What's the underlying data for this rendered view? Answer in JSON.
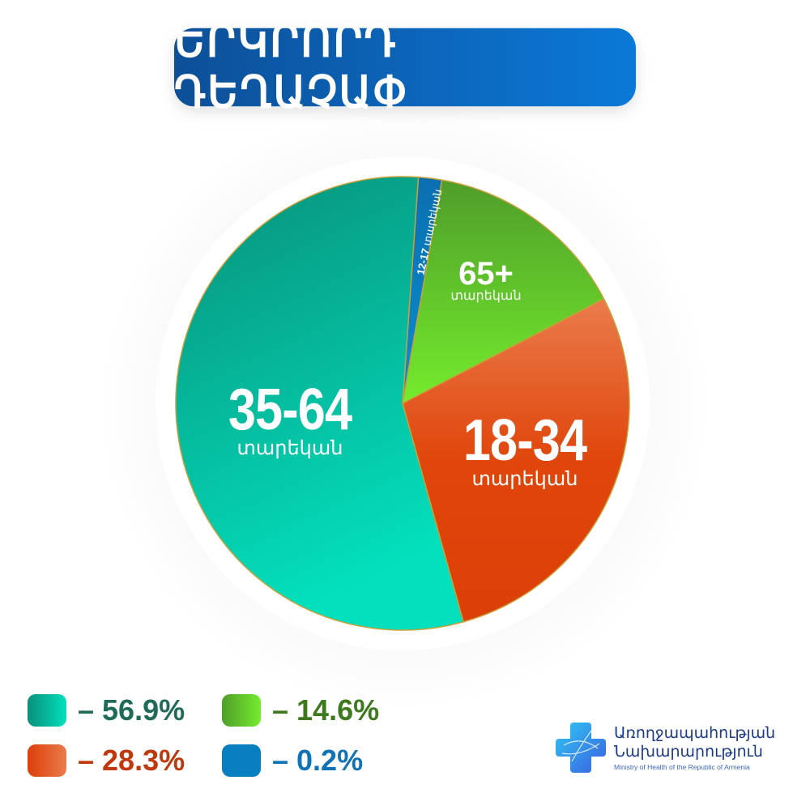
{
  "title": "ԵՐԿՐՈՐԴ ԴԵՂԱՉԱՓ",
  "chart_data": {
    "type": "pie",
    "title": "ԵՐԿՐՈՐԴ ԴԵՂԱՉԱՓ",
    "slices": [
      {
        "label": "12-17",
        "sublabel": "տարեկան",
        "value": 0.2,
        "legend": "– 0.2%",
        "color": "#0a7fc0"
      },
      {
        "label": "65+",
        "sublabel": "տարեկան",
        "value": 14.6,
        "legend": "– 14.6%",
        "color": "#5dc82a"
      },
      {
        "label": "18-34",
        "sublabel": "տարեկան",
        "value": 28.3,
        "legend": "– 28.3%",
        "color": "#e0470e"
      },
      {
        "label": "35-64",
        "sublabel": "տարեկան",
        "value": 56.9,
        "legend": "– 56.9%",
        "color": "#05b896"
      }
    ],
    "legend_colors": {
      "35-64": "#1f6b57",
      "65+": "#3d7a1d",
      "18-34": "#c0390c",
      "12-17": "#1173b5"
    }
  },
  "logo": {
    "line1": "Առողջապահության",
    "line2": "Նախարարություն",
    "line3": "Ministry of Health of the Republic of Armenia"
  }
}
